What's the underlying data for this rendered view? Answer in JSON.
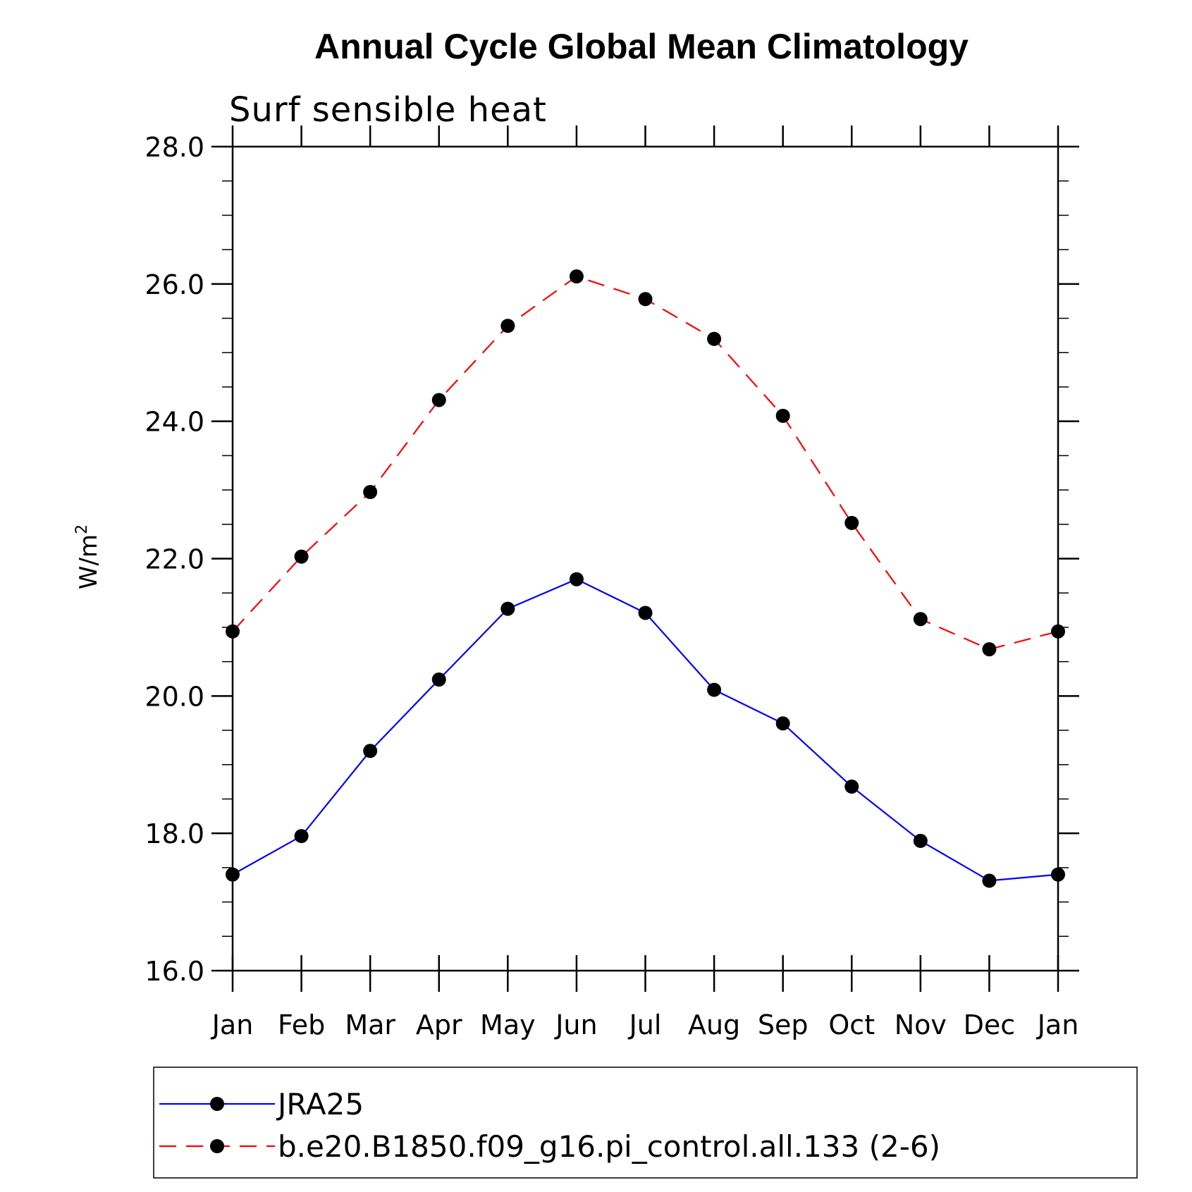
{
  "chart_data": {
    "type": "line",
    "title": "Annual Cycle Global Mean Climatology",
    "subtitle": "Surf sensible heat",
    "ylabel": "W/m",
    "ylabel_superscript": "2",
    "xlabel": "",
    "categories": [
      "Jan",
      "Feb",
      "Mar",
      "Apr",
      "May",
      "Jun",
      "Jul",
      "Aug",
      "Sep",
      "Oct",
      "Nov",
      "Dec",
      "Jan"
    ],
    "ylim": [
      16.0,
      28.0
    ],
    "yticks": [
      "16.0",
      "18.0",
      "20.0",
      "22.0",
      "24.0",
      "26.0",
      "28.0"
    ],
    "grid": false,
    "legend_position": "bottom",
    "series": [
      {
        "name": "JRA25",
        "color": "#0000ff",
        "line_style": "solid",
        "marker": "filled-circle",
        "values": [
          17.4,
          17.96,
          19.2,
          20.24,
          21.27,
          21.7,
          21.21,
          20.09,
          19.6,
          18.68,
          17.89,
          17.31,
          17.4
        ]
      },
      {
        "name": "b.e20.B1850.f09_g16.pi_control.all.133 (2-6)",
        "color": "#ff0000",
        "line_style": "dashed",
        "marker": "filled-circle",
        "values": [
          20.94,
          22.03,
          22.97,
          24.31,
          25.39,
          26.11,
          25.78,
          25.2,
          24.08,
          22.52,
          21.12,
          20.68,
          20.94
        ]
      }
    ]
  }
}
